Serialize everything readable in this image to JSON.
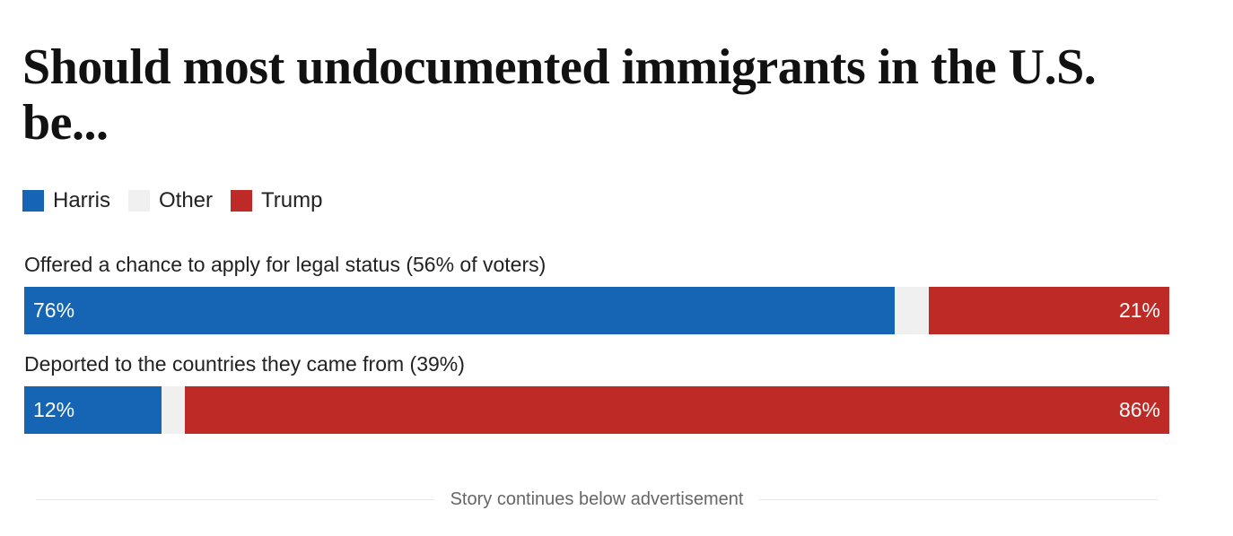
{
  "chart_data": {
    "type": "bar",
    "orientation": "horizontal",
    "stacked": true,
    "normalized": true,
    "title": "Should most undocumented immigrants in the U.S. be...",
    "legend": [
      {
        "name": "Harris",
        "color": "#1565b4"
      },
      {
        "name": "Other",
        "color": "#f0f0f0"
      },
      {
        "name": "Trump",
        "color": "#be2a25"
      }
    ],
    "categories": [
      "Offered a chance to apply for legal status (56% of voters)",
      "Deported to the countries they came from (39%)"
    ],
    "series": [
      {
        "name": "Harris",
        "values": [
          76,
          12
        ],
        "labels": [
          "76%",
          "12%"
        ]
      },
      {
        "name": "Other",
        "values": [
          3,
          2
        ],
        "labels": [
          "",
          ""
        ]
      },
      {
        "name": "Trump",
        "values": [
          21,
          86
        ],
        "labels": [
          "21%",
          "86%"
        ]
      }
    ],
    "xlim": [
      0,
      100
    ]
  },
  "footer": {
    "text": "Story continues below advertisement"
  }
}
